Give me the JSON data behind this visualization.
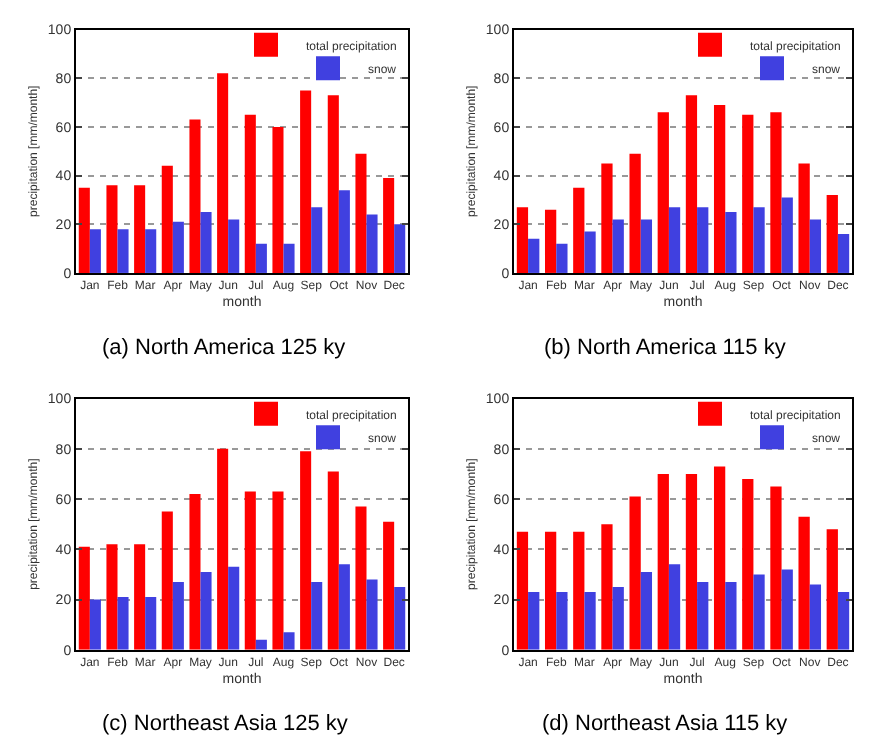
{
  "chart_data": [
    {
      "type": "bar",
      "title": "(a) North America 125 ky",
      "xlabel": "month",
      "ylabel": "precipitation [mm/month]",
      "categories": [
        "Jan",
        "Feb",
        "Mar",
        "Apr",
        "May",
        "Jun",
        "Jul",
        "Aug",
        "Sep",
        "Oct",
        "Nov",
        "Dec"
      ],
      "series": [
        {
          "name": "total precipitation",
          "color": "#ff0000",
          "values": [
            35,
            36,
            36,
            44,
            63,
            82,
            65,
            60,
            75,
            73,
            49,
            39
          ]
        },
        {
          "name": "snow",
          "color": "#4040e0",
          "values": [
            18,
            18,
            18,
            21,
            25,
            22,
            12,
            12,
            27,
            34,
            24,
            20
          ]
        }
      ],
      "ylim": [
        0,
        100
      ],
      "yticks": [
        0,
        20,
        40,
        60,
        80,
        100
      ],
      "grid": "y",
      "legend": "top right"
    },
    {
      "type": "bar",
      "title": "(b) North America 115 ky",
      "xlabel": "month",
      "ylabel": "precipitation [mm/month]",
      "categories": [
        "Jan",
        "Feb",
        "Mar",
        "Apr",
        "May",
        "Jun",
        "Jul",
        "Aug",
        "Sep",
        "Oct",
        "Nov",
        "Dec"
      ],
      "series": [
        {
          "name": "total precipitation",
          "color": "#ff0000",
          "values": [
            27,
            26,
            35,
            45,
            49,
            66,
            73,
            69,
            65,
            66,
            45,
            32
          ]
        },
        {
          "name": "snow",
          "color": "#4040e0",
          "values": [
            14,
            12,
            17,
            22,
            22,
            27,
            27,
            25,
            27,
            31,
            22,
            16
          ]
        }
      ],
      "ylim": [
        0,
        100
      ],
      "yticks": [
        0,
        20,
        40,
        60,
        80,
        100
      ],
      "grid": "y",
      "legend": "top right"
    },
    {
      "type": "bar",
      "title": "(c) Northeast Asia 125 ky",
      "xlabel": "month",
      "ylabel": "precipitation [mm/month]",
      "categories": [
        "Jan",
        "Feb",
        "Mar",
        "Apr",
        "May",
        "Jun",
        "Jul",
        "Aug",
        "Sep",
        "Oct",
        "Nov",
        "Dec"
      ],
      "series": [
        {
          "name": "total precipitation",
          "color": "#ff0000",
          "values": [
            41,
            42,
            42,
            55,
            62,
            80,
            63,
            63,
            79,
            71,
            57,
            51
          ]
        },
        {
          "name": "snow",
          "color": "#4040e0",
          "values": [
            20,
            21,
            21,
            27,
            31,
            33,
            4,
            7,
            27,
            34,
            28,
            25
          ]
        }
      ],
      "ylim": [
        0,
        100
      ],
      "yticks": [
        0,
        20,
        40,
        60,
        80,
        100
      ],
      "grid": "y",
      "legend": "top right"
    },
    {
      "type": "bar",
      "title": "(d) Northeast Asia 115 ky",
      "xlabel": "month",
      "ylabel": "precipitation [mm/month]",
      "categories": [
        "Jan",
        "Feb",
        "Mar",
        "Apr",
        "May",
        "Jun",
        "Jul",
        "Aug",
        "Sep",
        "Oct",
        "Nov",
        "Dec"
      ],
      "series": [
        {
          "name": "total precipitation",
          "color": "#ff0000",
          "values": [
            47,
            47,
            47,
            50,
            61,
            70,
            70,
            73,
            68,
            65,
            53,
            48
          ]
        },
        {
          "name": "snow",
          "color": "#4040e0",
          "values": [
            23,
            23,
            23,
            25,
            31,
            34,
            27,
            27,
            30,
            32,
            26,
            23
          ]
        }
      ],
      "ylim": [
        0,
        100
      ],
      "yticks": [
        0,
        20,
        40,
        60,
        80,
        100
      ],
      "grid": "y",
      "legend": "top right"
    }
  ]
}
